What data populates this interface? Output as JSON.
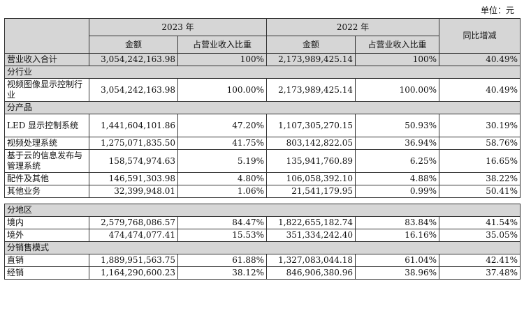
{
  "unit_label": "单位：元",
  "header": {
    "year_2023": "2023 年",
    "year_2022": "2022 年",
    "yoy": "同比增减",
    "amount": "金额",
    "ratio": "占营业收入比重"
  },
  "total": {
    "label": "营业收入合计",
    "a23": "3,054,242,163.98",
    "r23": "100%",
    "a22": "2,173,989,425.14",
    "r22": "100%",
    "yoy": "40.49%"
  },
  "industry": {
    "section": "分行业",
    "rows": [
      {
        "label": "视频图像显示控制行业",
        "a23": "3,054,242,163.98",
        "r23": "100.00%",
        "a22": "2,173,989,425.14",
        "r22": "100.00%",
        "yoy": "40.49%"
      }
    ]
  },
  "product": {
    "section": "分产品",
    "rows": [
      {
        "label": "LED 显示控制系统",
        "a23": "1,441,604,101.86",
        "r23": "47.20%",
        "a22": "1,107,305,270.15",
        "r22": "50.93%",
        "yoy": "30.19%"
      },
      {
        "label": "视频处理系统",
        "a23": "1,275,071,835.50",
        "r23": "41.75%",
        "a22": "803,142,822.05",
        "r22": "36.94%",
        "yoy": "58.76%"
      },
      {
        "label": "基于云的信息发布与管理系统",
        "a23": "158,574,974.63",
        "r23": "5.19%",
        "a22": "135,941,760.89",
        "r22": "6.25%",
        "yoy": "16.65%"
      },
      {
        "label": "配件及其他",
        "a23": "146,591,303.98",
        "r23": "4.80%",
        "a22": "106,058,392.10",
        "r22": "4.88%",
        "yoy": "38.22%"
      },
      {
        "label": "其他业务",
        "a23": "32,399,948.01",
        "r23": "1.06%",
        "a22": "21,541,179.95",
        "r22": "0.99%",
        "yoy": "50.41%"
      }
    ]
  },
  "region": {
    "section": "分地区",
    "rows": [
      {
        "label": "境内",
        "a23": "2,579,768,086.57",
        "r23": "84.47%",
        "a22": "1,822,655,182.74",
        "r22": "83.84%",
        "yoy": "41.54%"
      },
      {
        "label": "境外",
        "a23": "474,474,077.41",
        "r23": "15.53%",
        "a22": "351,334,242.40",
        "r22": "16.16%",
        "yoy": "35.05%"
      }
    ]
  },
  "sales_model": {
    "section": "分销售模式",
    "rows": [
      {
        "label": "直销",
        "a23": "1,889,951,563.75",
        "r23": "61.88%",
        "a22": "1,327,083,044.18",
        "r22": "61.04%",
        "yoy": "42.41%"
      },
      {
        "label": "经销",
        "a23": "1,164,290,600.23",
        "r23": "38.12%",
        "a22": "846,906,380.96",
        "r22": "38.96%",
        "yoy": "37.48%"
      }
    ]
  }
}
